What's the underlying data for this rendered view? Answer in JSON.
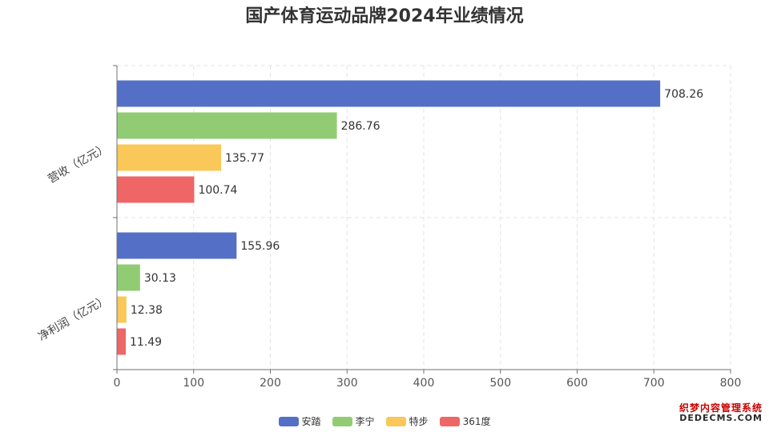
{
  "chart_data": {
    "type": "bar",
    "orientation": "horizontal",
    "title": "国产体育运动品牌2024年业绩情况",
    "categories": [
      "营收（亿元）",
      "净利润（亿元）"
    ],
    "series": [
      {
        "name": "安踏",
        "color": "#5470c6",
        "values": [
          708.26,
          155.96
        ]
      },
      {
        "name": "李宁",
        "color": "#91cc75",
        "values": [
          286.76,
          30.13
        ]
      },
      {
        "name": "特步",
        "color": "#fac858",
        "values": [
          135.77,
          12.38
        ]
      },
      {
        "name": "361度",
        "color": "#ee6666",
        "values": [
          100.74,
          11.49
        ]
      }
    ],
    "xlim": [
      0,
      800
    ],
    "xticks": [
      0,
      100,
      200,
      300,
      400,
      500,
      600,
      700,
      800
    ],
    "xlabel": "",
    "ylabel": "",
    "grid": true,
    "legend_position": "bottom"
  },
  "watermark": {
    "line1": "织梦内容管理系统",
    "line2": "DEDECMS.COM"
  }
}
